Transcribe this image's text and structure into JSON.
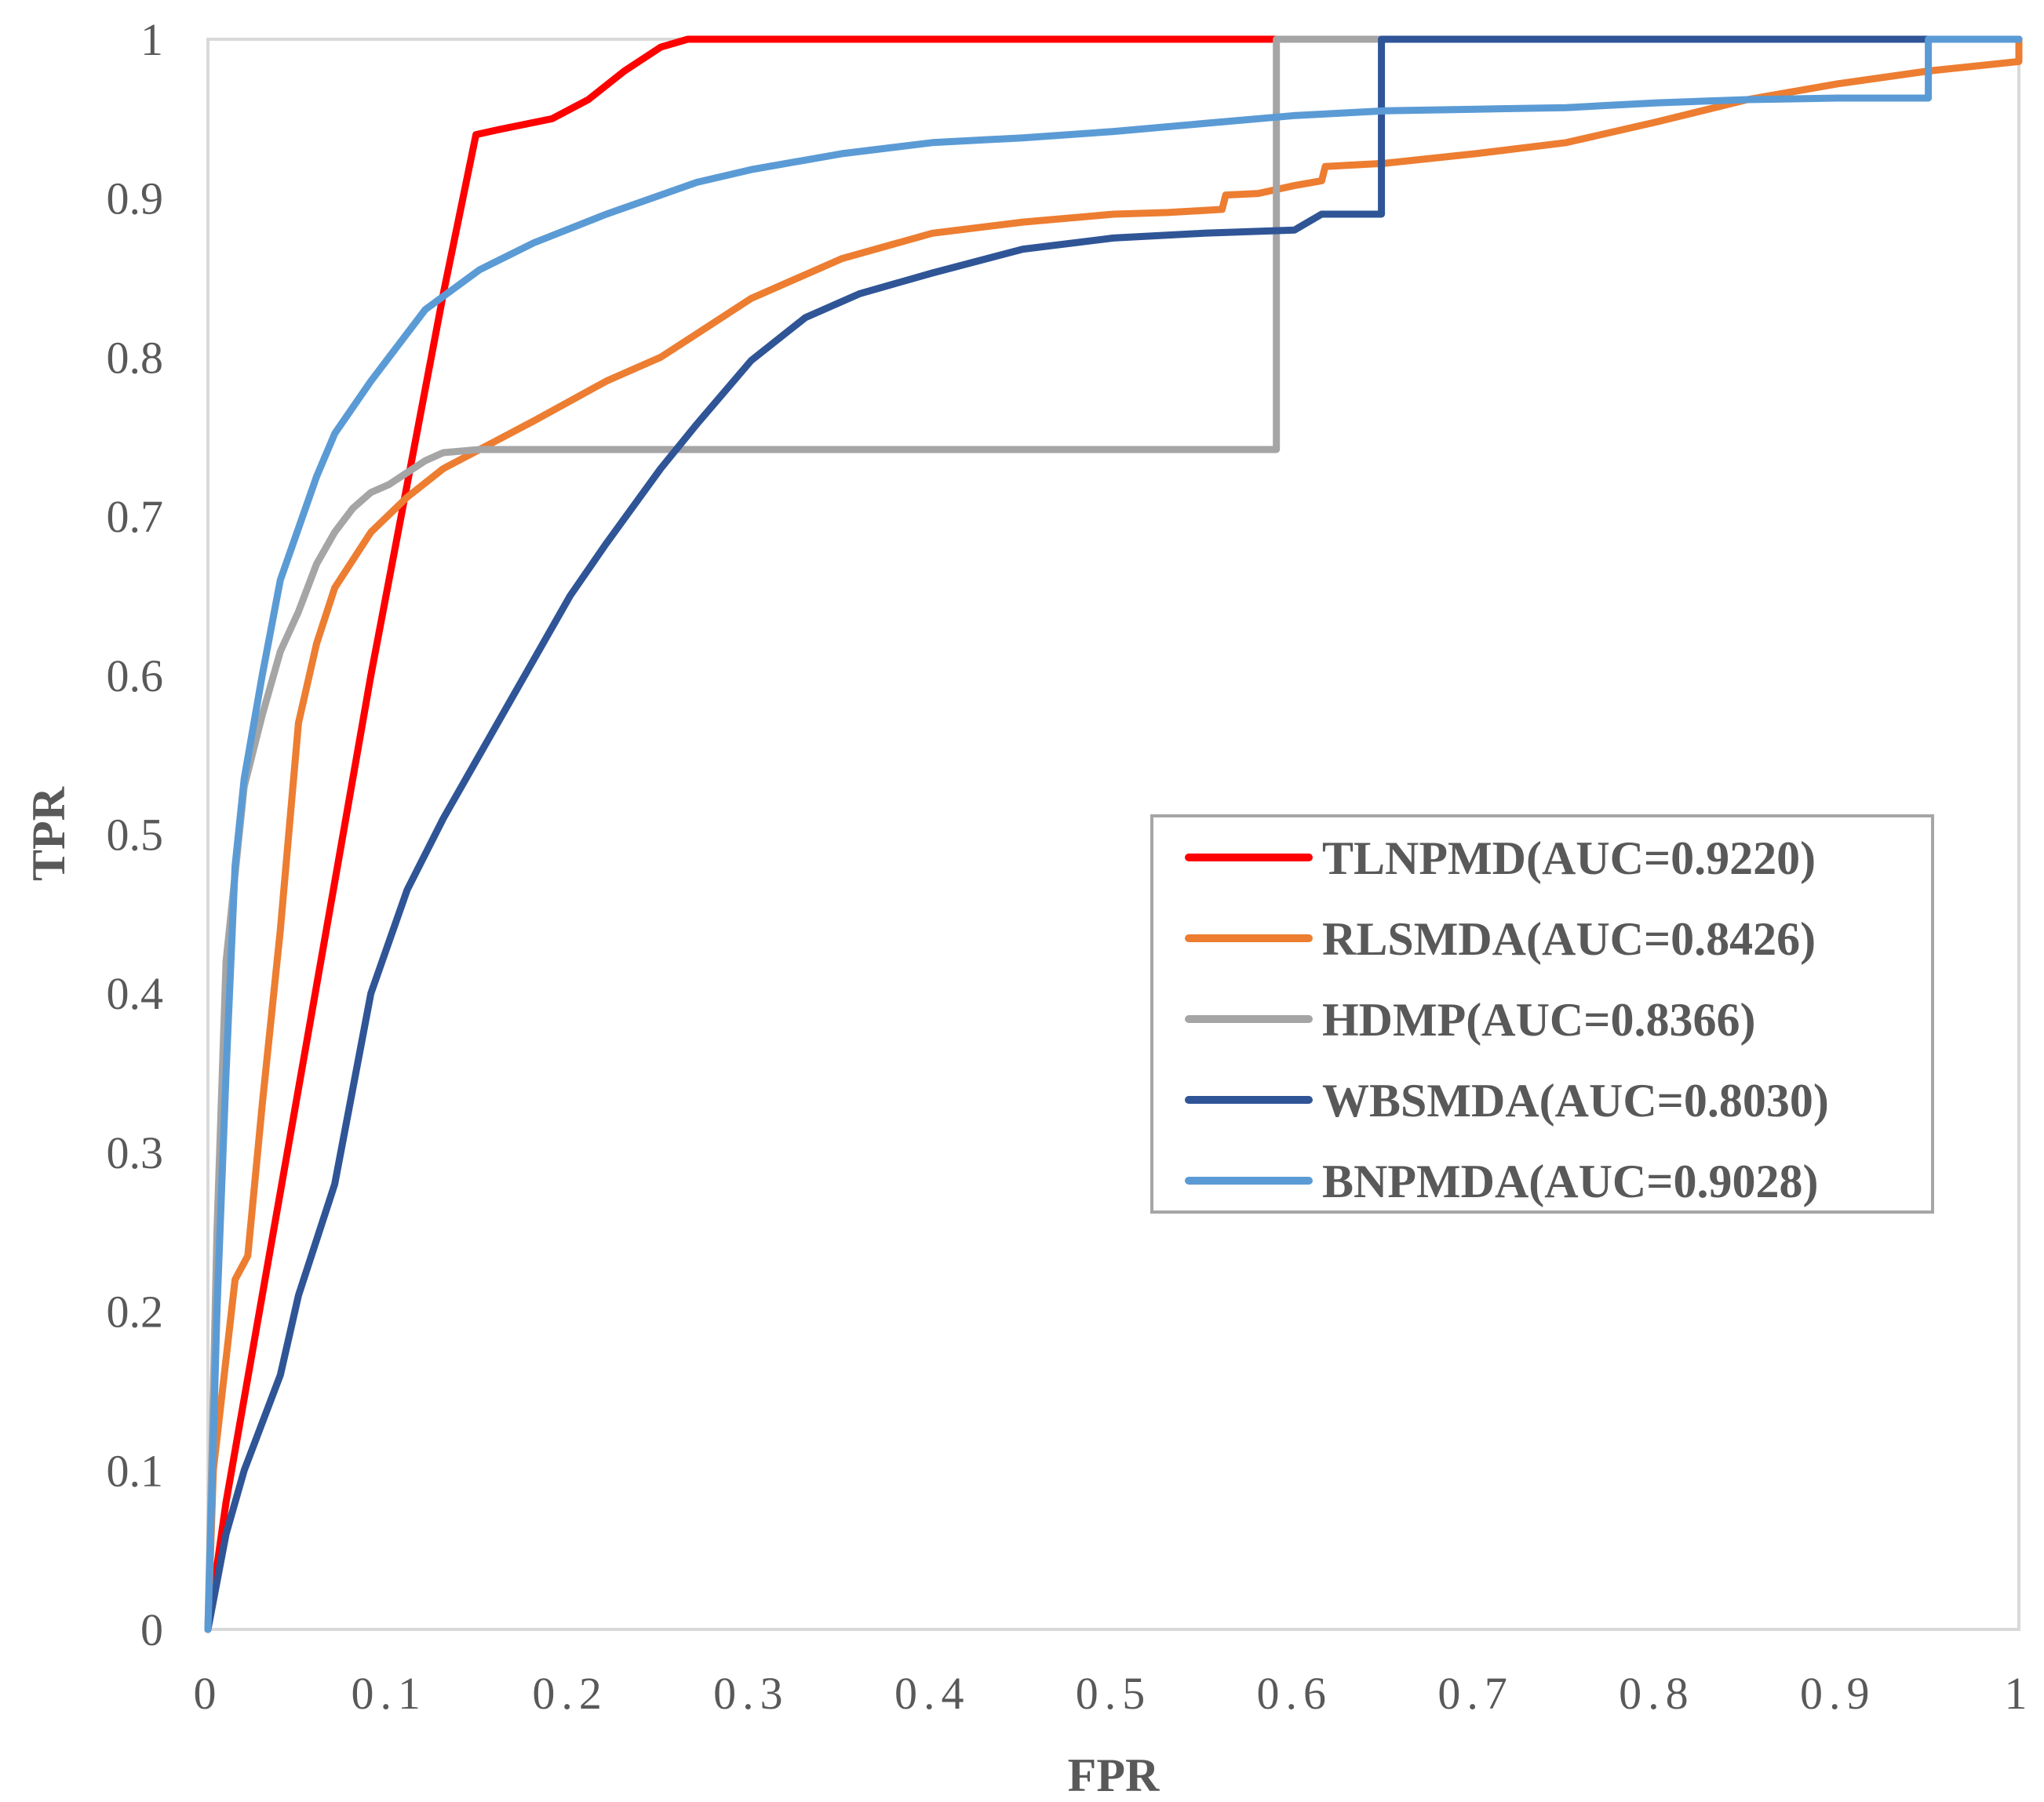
{
  "chart_data": {
    "type": "line",
    "title": "",
    "xlabel": "FPR",
    "ylabel": "TPR",
    "xlim": [
      0,
      1
    ],
    "ylim": [
      0,
      1
    ],
    "grid": false,
    "legend_position": "center-right",
    "x_ticks": [
      {
        "value": 0,
        "label": "0"
      },
      {
        "value": 0.1,
        "label": "0.1"
      },
      {
        "value": 0.2,
        "label": "0.2"
      },
      {
        "value": 0.3,
        "label": "0.3"
      },
      {
        "value": 0.4,
        "label": "0.4"
      },
      {
        "value": 0.5,
        "label": "0.5"
      },
      {
        "value": 0.6,
        "label": "0.6"
      },
      {
        "value": 0.7,
        "label": "0.7"
      },
      {
        "value": 0.8,
        "label": "0.8"
      },
      {
        "value": 0.9,
        "label": "0.9"
      },
      {
        "value": 1,
        "label": "1"
      }
    ],
    "y_ticks": [
      {
        "value": 0,
        "label": "0"
      },
      {
        "value": 0.1,
        "label": "0.1"
      },
      {
        "value": 0.2,
        "label": "0.2"
      },
      {
        "value": 0.3,
        "label": "0.3"
      },
      {
        "value": 0.4,
        "label": "0.4"
      },
      {
        "value": 0.5,
        "label": "0.5"
      },
      {
        "value": 0.6,
        "label": "0.6"
      },
      {
        "value": 0.7,
        "label": "0.7"
      },
      {
        "value": 0.8,
        "label": "0.8"
      },
      {
        "value": 0.9,
        "label": "0.9"
      },
      {
        "value": 1,
        "label": "1"
      }
    ],
    "series": [
      {
        "name": "TLNPMD(AUC=0.9220)",
        "color": "#ff0000",
        "points": [
          [
            0,
            0
          ],
          [
            0.01,
            0.08
          ],
          [
            0.03,
            0.21
          ],
          [
            0.05,
            0.34
          ],
          [
            0.07,
            0.47
          ],
          [
            0.09,
            0.6
          ],
          [
            0.11,
            0.72
          ],
          [
            0.13,
            0.84
          ],
          [
            0.148,
            0.94
          ],
          [
            0.16,
            0.943
          ],
          [
            0.19,
            0.95
          ],
          [
            0.21,
            0.962
          ],
          [
            0.23,
            0.98
          ],
          [
            0.25,
            0.995
          ],
          [
            0.265,
            1.0
          ],
          [
            0.3,
            1.0
          ],
          [
            0.59,
            1.0
          ]
        ]
      },
      {
        "name": "RLSMDA(AUC=0.8426)",
        "color": "#ed7d31",
        "points": [
          [
            0,
            0
          ],
          [
            0.003,
            0.1
          ],
          [
            0.015,
            0.22
          ],
          [
            0.022,
            0.235
          ],
          [
            0.03,
            0.33
          ],
          [
            0.04,
            0.44
          ],
          [
            0.05,
            0.57
          ],
          [
            0.06,
            0.62
          ],
          [
            0.07,
            0.655
          ],
          [
            0.09,
            0.69
          ],
          [
            0.11,
            0.712
          ],
          [
            0.13,
            0.73
          ],
          [
            0.15,
            0.742
          ],
          [
            0.18,
            0.76
          ],
          [
            0.22,
            0.785
          ],
          [
            0.25,
            0.8
          ],
          [
            0.3,
            0.837
          ],
          [
            0.35,
            0.862
          ],
          [
            0.4,
            0.878
          ],
          [
            0.45,
            0.885
          ],
          [
            0.5,
            0.89
          ],
          [
            0.53,
            0.891
          ],
          [
            0.56,
            0.893
          ],
          [
            0.562,
            0.902
          ],
          [
            0.58,
            0.903
          ],
          [
            0.6,
            0.908
          ],
          [
            0.615,
            0.911
          ],
          [
            0.617,
            0.92
          ],
          [
            0.65,
            0.922
          ],
          [
            0.7,
            0.928
          ],
          [
            0.75,
            0.935
          ],
          [
            0.8,
            0.948
          ],
          [
            0.85,
            0.962
          ],
          [
            0.9,
            0.972
          ],
          [
            0.95,
            0.98
          ],
          [
            1.0,
            0.986
          ],
          [
            1.0,
            1.0
          ]
        ]
      },
      {
        "name": "HDMP(AUC=0.8366)",
        "color": "#a5a5a5",
        "points": [
          [
            0,
            0
          ],
          [
            0.005,
            0.25
          ],
          [
            0.01,
            0.42
          ],
          [
            0.02,
            0.53
          ],
          [
            0.03,
            0.575
          ],
          [
            0.04,
            0.615
          ],
          [
            0.05,
            0.64
          ],
          [
            0.06,
            0.67
          ],
          [
            0.07,
            0.69
          ],
          [
            0.08,
            0.705
          ],
          [
            0.09,
            0.715
          ],
          [
            0.1,
            0.72
          ],
          [
            0.12,
            0.735
          ],
          [
            0.13,
            0.74
          ],
          [
            0.15,
            0.742
          ],
          [
            0.2,
            0.742
          ],
          [
            0.3,
            0.742
          ],
          [
            0.4,
            0.742
          ],
          [
            0.5,
            0.742
          ],
          [
            0.59,
            0.742
          ],
          [
            0.59,
            1.0
          ],
          [
            1.0,
            1.0
          ]
        ]
      },
      {
        "name": "WBSMDA(AUC=0.8030)",
        "color": "#2f5597",
        "points": [
          [
            0,
            0
          ],
          [
            0.01,
            0.06
          ],
          [
            0.02,
            0.1
          ],
          [
            0.04,
            0.16
          ],
          [
            0.05,
            0.21
          ],
          [
            0.07,
            0.28
          ],
          [
            0.09,
            0.4
          ],
          [
            0.11,
            0.465
          ],
          [
            0.13,
            0.51
          ],
          [
            0.15,
            0.55
          ],
          [
            0.175,
            0.6
          ],
          [
            0.2,
            0.65
          ],
          [
            0.22,
            0.683
          ],
          [
            0.25,
            0.73
          ],
          [
            0.27,
            0.758
          ],
          [
            0.3,
            0.798
          ],
          [
            0.33,
            0.825
          ],
          [
            0.36,
            0.84
          ],
          [
            0.4,
            0.853
          ],
          [
            0.45,
            0.868
          ],
          [
            0.5,
            0.875
          ],
          [
            0.55,
            0.878
          ],
          [
            0.6,
            0.88
          ],
          [
            0.615,
            0.89
          ],
          [
            0.648,
            0.89
          ],
          [
            0.648,
            1.0
          ],
          [
            0.7,
            1.0
          ],
          [
            0.8,
            1.0
          ],
          [
            0.9,
            1.0
          ],
          [
            0.95,
            1.0
          ],
          [
            1.0,
            1.0
          ]
        ]
      },
      {
        "name": "BNPMDA(AUC=0.9028)",
        "color": "#5b9bd5",
        "points": [
          [
            0,
            0
          ],
          [
            0.005,
            0.2
          ],
          [
            0.01,
            0.35
          ],
          [
            0.015,
            0.48
          ],
          [
            0.02,
            0.535
          ],
          [
            0.03,
            0.6
          ],
          [
            0.04,
            0.66
          ],
          [
            0.06,
            0.725
          ],
          [
            0.07,
            0.752
          ],
          [
            0.09,
            0.785
          ],
          [
            0.1,
            0.8
          ],
          [
            0.12,
            0.83
          ],
          [
            0.15,
            0.855
          ],
          [
            0.18,
            0.872
          ],
          [
            0.22,
            0.89
          ],
          [
            0.27,
            0.91
          ],
          [
            0.3,
            0.918
          ],
          [
            0.35,
            0.928
          ],
          [
            0.4,
            0.935
          ],
          [
            0.45,
            0.938
          ],
          [
            0.5,
            0.942
          ],
          [
            0.55,
            0.947
          ],
          [
            0.6,
            0.952
          ],
          [
            0.65,
            0.955
          ],
          [
            0.7,
            0.956
          ],
          [
            0.75,
            0.957
          ],
          [
            0.8,
            0.96
          ],
          [
            0.85,
            0.962
          ],
          [
            0.9,
            0.963
          ],
          [
            0.95,
            0.963
          ],
          [
            0.95,
            1.0
          ],
          [
            1.0,
            1.0
          ]
        ]
      }
    ]
  }
}
